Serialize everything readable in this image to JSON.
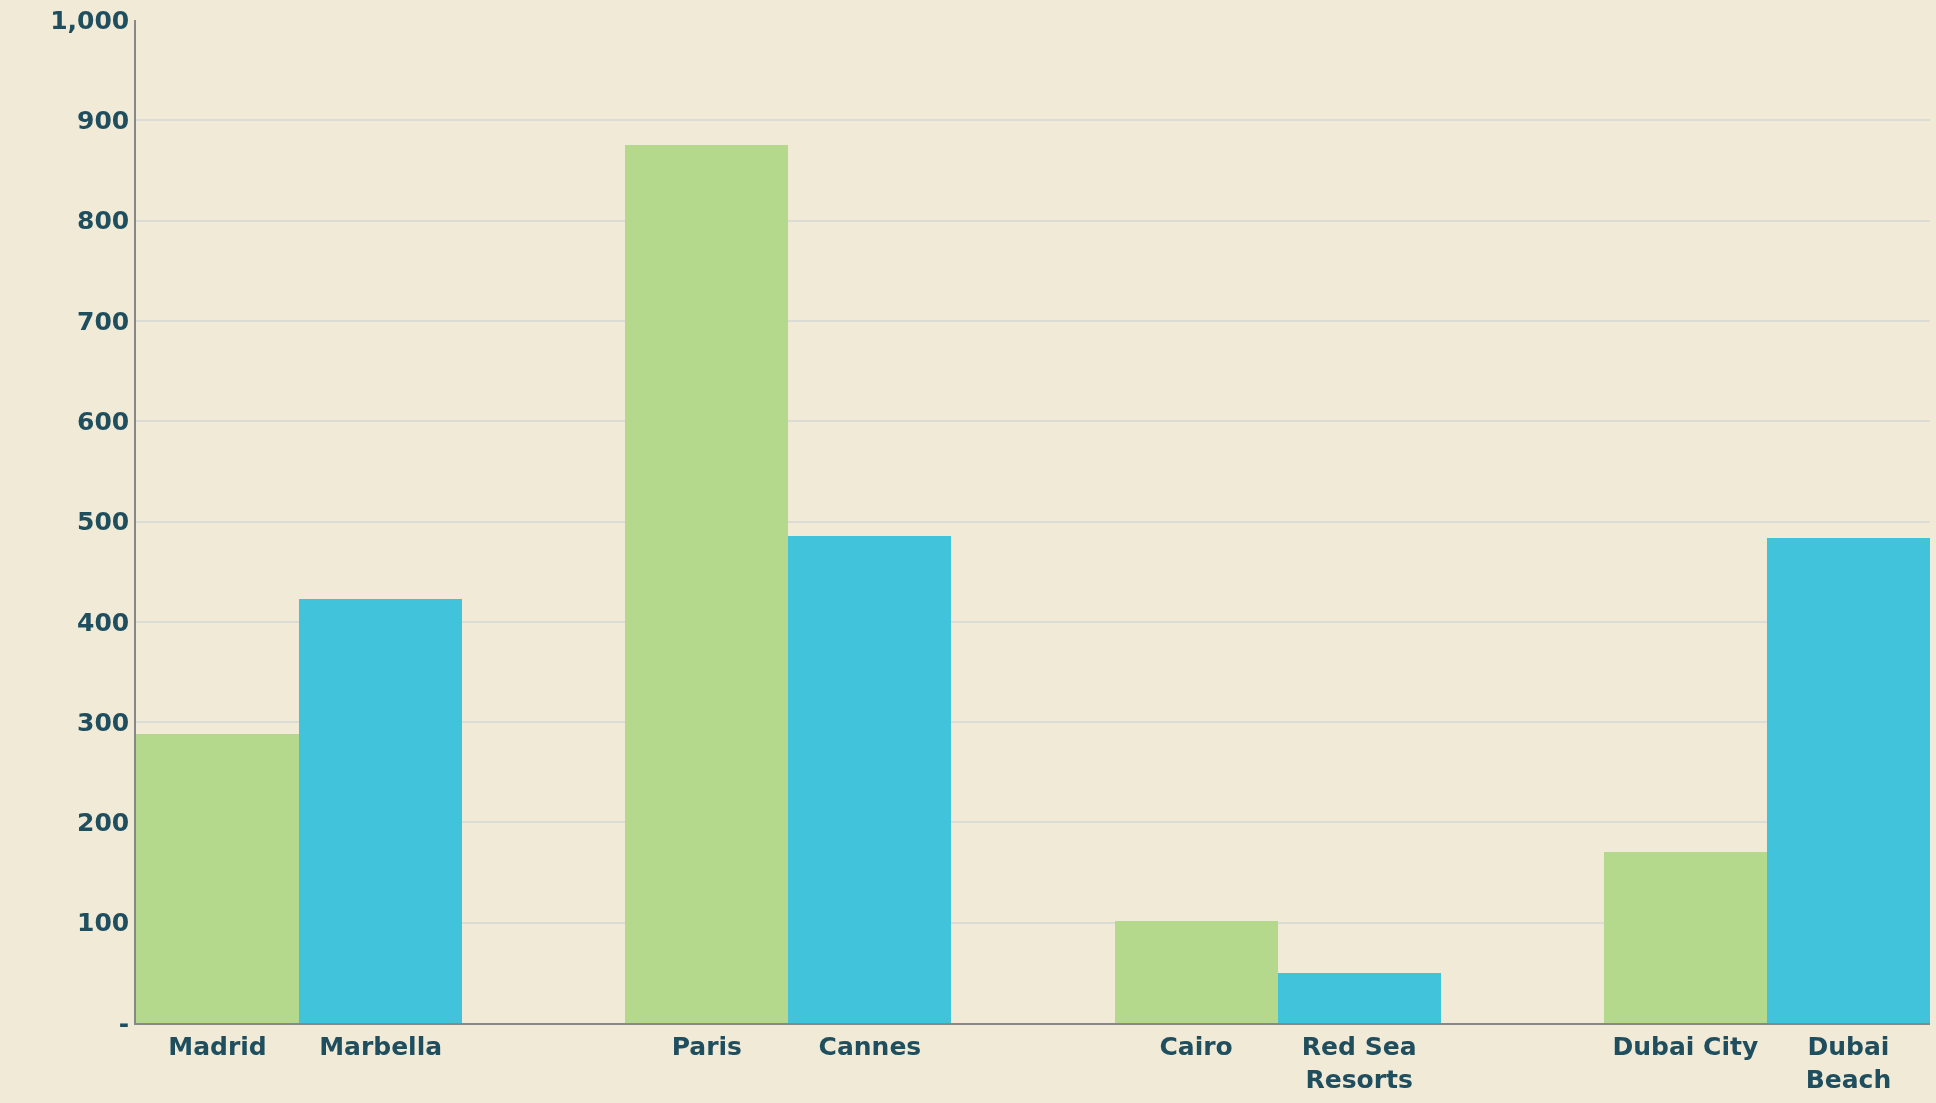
{
  "chart_data": {
    "type": "bar",
    "categories": [
      "Madrid",
      "Marbella",
      null,
      "Paris",
      "Cannes",
      null,
      "Cairo",
      "Red Sea Resorts",
      null,
      "Dubai City",
      "Dubai Beach"
    ],
    "values": [
      288,
      423,
      null,
      875,
      486,
      null,
      102,
      50,
      null,
      170,
      484
    ],
    "colors": [
      "#b4d98c",
      "#42c3dc",
      null,
      "#b4d98c",
      "#42c3dc",
      null,
      "#b4d98c",
      "#42c3dc",
      null,
      "#b4d98c",
      "#42c3dc"
    ],
    "ylim": [
      0,
      1000
    ],
    "yticks": [
      {
        "value": 0,
        "label": "-"
      },
      100,
      200,
      300,
      400,
      500,
      600,
      700,
      800,
      900,
      {
        "value": 1000,
        "label": "1,000"
      }
    ],
    "grid": "y",
    "legend": false
  }
}
